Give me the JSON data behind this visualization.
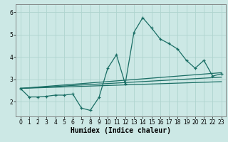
{
  "title": "",
  "xlabel": "Humidex (Indice chaleur)",
  "ylabel": "",
  "bg_color": "#cce8e5",
  "line_color": "#1a6e65",
  "grid_color": "#afd4cf",
  "x_ticks": [
    0,
    1,
    2,
    3,
    4,
    5,
    6,
    7,
    8,
    9,
    10,
    11,
    12,
    13,
    14,
    15,
    16,
    17,
    18,
    19,
    20,
    21,
    22,
    23
  ],
  "y_ticks": [
    2,
    3,
    4,
    5,
    6
  ],
  "ylim": [
    1.35,
    6.35
  ],
  "xlim": [
    -0.5,
    23.5
  ],
  "main_x": [
    0,
    1,
    2,
    3,
    4,
    5,
    6,
    7,
    8,
    9,
    10,
    11,
    12,
    13,
    14,
    15,
    16,
    17,
    18,
    19,
    20,
    21,
    22,
    23
  ],
  "main_y": [
    2.6,
    2.22,
    2.22,
    2.25,
    2.3,
    2.3,
    2.35,
    1.72,
    1.62,
    2.2,
    3.5,
    4.1,
    2.8,
    5.1,
    5.75,
    5.3,
    4.8,
    4.6,
    4.35,
    3.85,
    3.5,
    3.85,
    3.15,
    3.25
  ],
  "line1_x": [
    0,
    23
  ],
  "line1_y": [
    2.6,
    3.3
  ],
  "line2_x": [
    0,
    23
  ],
  "line2_y": [
    2.6,
    3.1
  ],
  "line3_x": [
    0,
    23
  ],
  "line3_y": [
    2.6,
    2.9
  ],
  "marker_size": 3.0,
  "line_width": 0.9,
  "tick_fontsize": 5.5,
  "label_fontsize": 7.0
}
